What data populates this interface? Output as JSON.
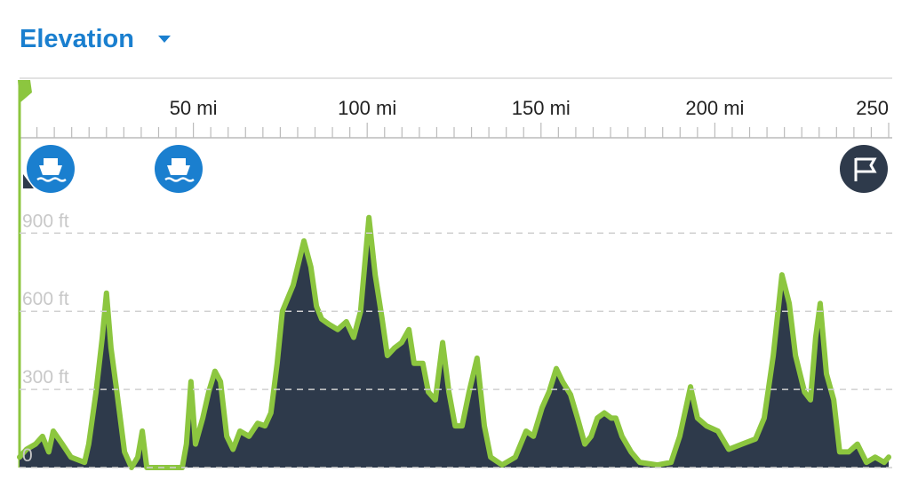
{
  "chart_data": {
    "type": "area",
    "title": "Elevation",
    "color": "#2e3a4b",
    "line_color": "#8cc63f",
    "grid": true,
    "xlim": [
      0,
      250
    ],
    "ylim": [
      0,
      1000
    ],
    "xticks": [
      {
        "value": 50,
        "label": "50 mi"
      },
      {
        "value": 100,
        "label": "100 mi"
      },
      {
        "value": 150,
        "label": "150 mi"
      },
      {
        "value": 200,
        "label": "200 mi"
      },
      250
    ],
    "xminorticks": [
      5,
      10,
      15,
      20,
      25,
      30,
      35,
      40,
      45,
      55,
      60,
      65,
      70,
      75,
      80,
      85,
      90,
      95,
      105,
      110,
      115,
      120,
      125,
      130,
      135,
      140,
      145,
      155,
      160,
      165,
      170,
      175,
      180,
      185,
      190,
      195,
      205,
      210,
      215,
      220,
      225,
      230,
      235,
      240,
      245
    ],
    "yticks": [
      0,
      {
        "value": 300,
        "label": "300 ft"
      },
      {
        "value": 600,
        "label": "600 ft"
      },
      {
        "value": 900,
        "label": "900 ft"
      }
    ],
    "x": [
      0,
      2,
      4.6,
      6.6,
      8.4,
      9.7,
      12.3,
      14.8,
      18.7,
      19.9,
      22,
      23.8,
      25,
      26.3,
      28,
      30.2,
      32.2,
      34,
      35.3,
      36.6,
      46.8,
      48,
      49.3,
      50.6,
      52.7,
      54.4,
      56.2,
      57.8,
      59.6,
      61.4,
      63.4,
      66,
      68.5,
      70.6,
      72.3,
      74.1,
      75.6,
      78.7,
      81.8,
      83.8,
      85.4,
      86.9,
      89,
      91.5,
      94,
      96.1,
      98.1,
      100.5,
      102.3,
      104.3,
      105.8,
      107.9,
      109.9,
      112,
      113.5,
      116,
      117.6,
      119.6,
      121.7,
      123.5,
      125.3,
      127.3,
      129.3,
      131.6,
      133.7,
      135.5,
      138.8,
      142.6,
      145.7,
      147.8,
      150.3,
      152.3,
      154.4,
      156.2,
      158.5,
      160.5,
      162.6,
      164.4,
      166.2,
      168.2,
      170.2,
      171.5,
      173.3,
      175.9,
      178.4,
      183.5,
      187.4,
      189.9,
      193,
      195,
      197.6,
      200.9,
      204,
      207.8,
      211.7,
      214.2,
      216.8,
      219.3,
      221.4,
      223.2,
      225.8,
      227.5,
      229,
      230.3,
      232.1,
      234.2,
      235.9,
      238.5,
      241,
      243.6,
      246.1,
      248.7,
      250
    ],
    "values": [
      40,
      70,
      90,
      120,
      60,
      140,
      90,
      40,
      20,
      90,
      290,
      500,
      670,
      460,
      290,
      60,
      0,
      40,
      140,
      0,
      0,
      90,
      330,
      90,
      190,
      290,
      370,
      330,
      120,
      70,
      140,
      120,
      170,
      160,
      210,
      400,
      600,
      700,
      870,
      770,
      620,
      570,
      550,
      530,
      560,
      500,
      600,
      960,
      740,
      570,
      430,
      460,
      480,
      530,
      400,
      400,
      290,
      260,
      480,
      290,
      160,
      160,
      290,
      420,
      160,
      40,
      10,
      40,
      140,
      120,
      230,
      290,
      380,
      330,
      280,
      190,
      90,
      120,
      190,
      210,
      190,
      190,
      120,
      60,
      20,
      10,
      20,
      120,
      310,
      190,
      160,
      140,
      70,
      90,
      110,
      190,
      430,
      740,
      630,
      430,
      290,
      260,
      500,
      630,
      360,
      260,
      60,
      60,
      90,
      20,
      40,
      20,
      40
    ]
  }
}
